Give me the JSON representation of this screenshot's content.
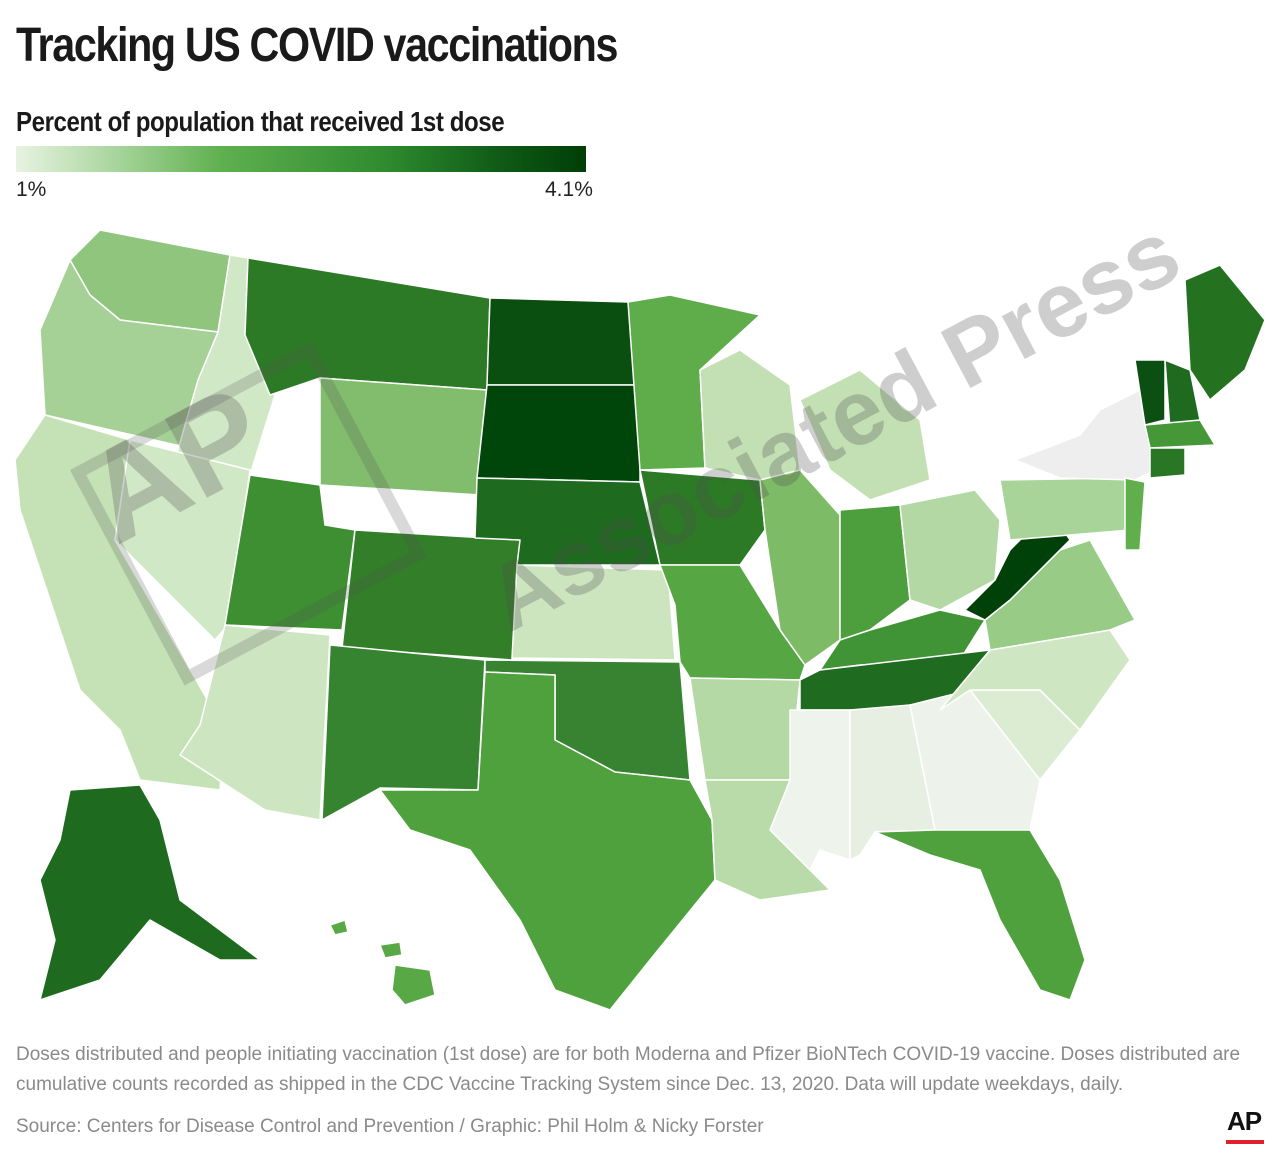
{
  "header": {
    "title": "Tracking US COVID vaccinations",
    "subtitle": "Percent of population that received 1st dose"
  },
  "legend": {
    "min_label": "1%",
    "max_label": "4.1%",
    "min_color": "#e8f3e2",
    "max_color": "#003f06"
  },
  "map_data": {
    "metric": "Percent of population that received 1st dose",
    "scale": [
      1,
      4.1
    ],
    "states": [
      {
        "abbr": "WA",
        "pct": 2.2,
        "color": "#8fc57c"
      },
      {
        "abbr": "OR",
        "pct": 1.9,
        "color": "#a6d196"
      },
      {
        "abbr": "CA",
        "pct": 1.6,
        "color": "#c5e2b7"
      },
      {
        "abbr": "ID",
        "pct": 1.4,
        "color": "#d1e8c6"
      },
      {
        "abbr": "NV",
        "pct": 1.4,
        "color": "#d1e8c6"
      },
      {
        "abbr": "UT",
        "pct": 2.9,
        "color": "#3d8f32"
      },
      {
        "abbr": "AZ",
        "pct": 1.5,
        "color": "#cde6c1"
      },
      {
        "abbr": "MT",
        "pct": 3.3,
        "color": "#2d7a26"
      },
      {
        "abbr": "WY",
        "pct": 2.3,
        "color": "#82bc6d"
      },
      {
        "abbr": "CO",
        "pct": 3.2,
        "color": "#327e29"
      },
      {
        "abbr": "NM",
        "pct": 3.1,
        "color": "#368430"
      },
      {
        "abbr": "ND",
        "pct": 3.9,
        "color": "#0a4e10"
      },
      {
        "abbr": "SD",
        "pct": 4.1,
        "color": "#004509"
      },
      {
        "abbr": "NE",
        "pct": 3.6,
        "color": "#1e6a1e"
      },
      {
        "abbr": "KS",
        "pct": 1.5,
        "color": "#cce5bf"
      },
      {
        "abbr": "OK",
        "pct": 3.1,
        "color": "#378331"
      },
      {
        "abbr": "TX",
        "pct": 2.7,
        "color": "#4ea13c"
      },
      {
        "abbr": "MN",
        "pct": 2.6,
        "color": "#5eac4a"
      },
      {
        "abbr": "IA",
        "pct": 3.3,
        "color": "#2d7a26"
      },
      {
        "abbr": "MO",
        "pct": 2.6,
        "color": "#56a644"
      },
      {
        "abbr": "AR",
        "pct": 1.8,
        "color": "#b5d9a5"
      },
      {
        "abbr": "LA",
        "pct": 1.8,
        "color": "#b8dba9"
      },
      {
        "abbr": "WI",
        "pct": 1.6,
        "color": "#c2e0b4"
      },
      {
        "abbr": "IL",
        "pct": 2.3,
        "color": "#7dbb66"
      },
      {
        "abbr": "MI",
        "pct": 1.6,
        "color": "#c2e0b4"
      },
      {
        "abbr": "IN",
        "pct": 2.7,
        "color": "#4c9f3c"
      },
      {
        "abbr": "OH",
        "pct": 1.8,
        "color": "#b3d8a3"
      },
      {
        "abbr": "KY",
        "pct": 2.9,
        "color": "#419436"
      },
      {
        "abbr": "TN",
        "pct": 3.6,
        "color": "#1f6b1f"
      },
      {
        "abbr": "MS",
        "pct": 1.0,
        "color": "#eef3ec"
      },
      {
        "abbr": "AL",
        "pct": 1.1,
        "color": "#e6efe1"
      },
      {
        "abbr": "GA",
        "pct": 1.0,
        "color": "#edf2ea"
      },
      {
        "abbr": "FL",
        "pct": 2.7,
        "color": "#4ea13c"
      },
      {
        "abbr": "SC",
        "pct": 1.2,
        "color": "#dcecd3"
      },
      {
        "abbr": "NC",
        "pct": 1.4,
        "color": "#cfe6c3"
      },
      {
        "abbr": "VA",
        "pct": 2.0,
        "color": "#98cc86"
      },
      {
        "abbr": "WV",
        "pct": 4.1,
        "color": "#00410a"
      },
      {
        "abbr": "PA",
        "pct": 1.9,
        "color": "#a8d399"
      },
      {
        "abbr": "NY",
        "pct": 1.0,
        "color": "#eeeeee"
      },
      {
        "abbr": "NJ",
        "pct": 2.5,
        "color": "#60ae4c"
      },
      {
        "abbr": "ME",
        "pct": 3.5,
        "color": "#24711f"
      },
      {
        "abbr": "VT",
        "pct": 3.9,
        "color": "#0c4f12"
      },
      {
        "abbr": "NH",
        "pct": 3.6,
        "color": "#1e6a1e"
      },
      {
        "abbr": "MA",
        "pct": 2.8,
        "color": "#459738"
      },
      {
        "abbr": "CT",
        "pct": 3.4,
        "color": "#297624"
      },
      {
        "abbr": "AK",
        "pct": 3.6,
        "color": "#1e6a1e"
      },
      {
        "abbr": "HI",
        "pct": 2.6,
        "color": "#58a846"
      }
    ]
  },
  "watermark": {
    "logo": "AP",
    "text": "Associated Press"
  },
  "footer": {
    "note": "Doses distributed and people initiating vaccination (1st dose) are for both Moderna and Pfizer BioNTech COVID-19 vaccine. Doses distributed are cumulative counts recorded as shipped in the CDC Vaccine Tracking System since Dec. 13, 2020. Data will update weekdays, daily.",
    "source": "Source: Centers for Disease Control and Prevention / Graphic: Phil Holm & Nicky Forster",
    "logo": "AP"
  }
}
